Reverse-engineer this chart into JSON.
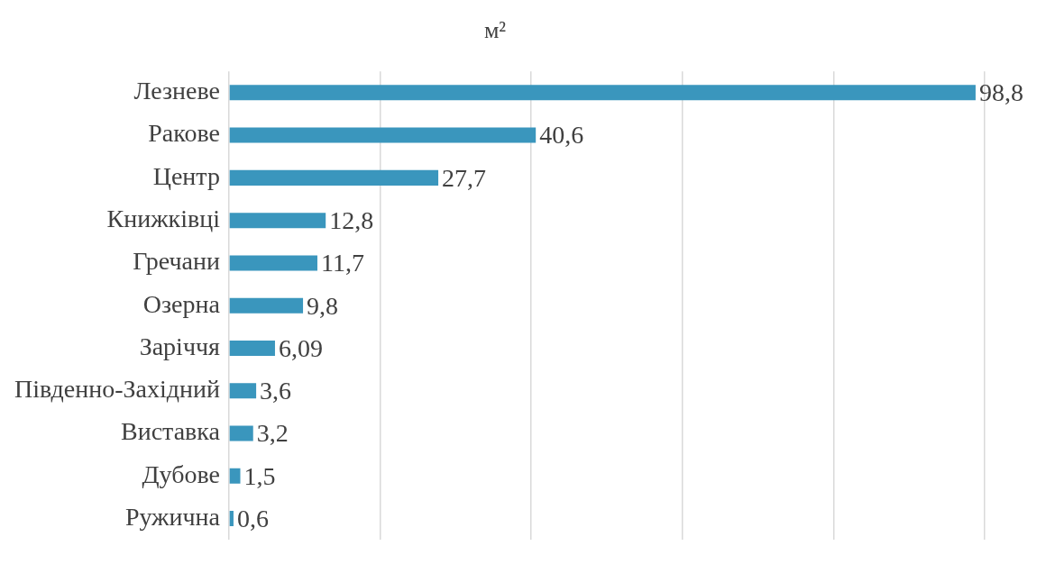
{
  "chart_data": {
    "type": "bar",
    "orientation": "horizontal",
    "title": "м²",
    "categories": [
      "Лезневе",
      "Ракове",
      "Центр",
      "Книжківці",
      "Гречани",
      "Озерна",
      "Заріччя",
      "Південно-Західний",
      "Виставка",
      "Дубове",
      "Ружична"
    ],
    "values": [
      98.8,
      40.6,
      27.7,
      12.8,
      11.7,
      9.8,
      6.09,
      3.6,
      3.2,
      1.5,
      0.6
    ],
    "value_labels": [
      "98,8",
      "40,6",
      "27,7",
      "12,8",
      "11,7",
      "9,8",
      "6,09",
      "3,6",
      "3,2",
      "1,5",
      "0,6"
    ],
    "color": "#3a96bd",
    "xlim": [
      0,
      100
    ],
    "xticks": [
      {
        "value": 0,
        "label": null
      },
      {
        "value": 20,
        "label": null
      },
      {
        "value": 40,
        "label": null
      },
      {
        "value": 60,
        "label": null
      },
      {
        "value": 80,
        "label": null
      },
      {
        "value": 100,
        "label": null
      }
    ],
    "tick_labels": "y",
    "grid": "x"
  }
}
